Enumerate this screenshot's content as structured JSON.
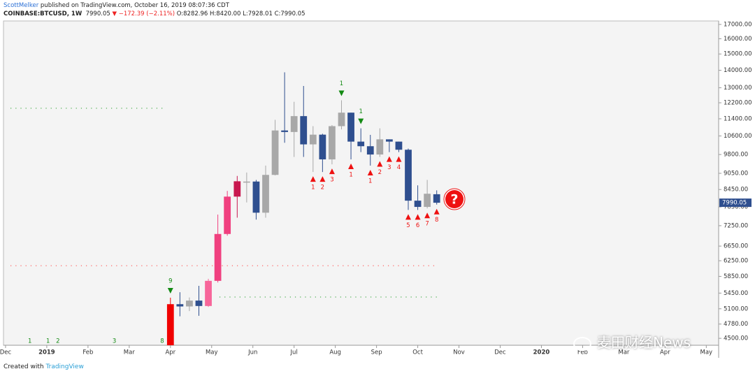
{
  "header": {
    "author": "ScottMelker",
    "published": "published on TradingView.com, October 16, 2019 08:07:36 CDT",
    "symbol": "COINBASE:BTCUSD, 1W",
    "last": "7990.05",
    "change": "▼ −172.39 (−2.11%)",
    "ohlc": [
      "O:8282.96",
      "H:8420.00",
      "L:7928.01",
      "C:7990.05"
    ]
  },
  "chart_data": {
    "type": "candlestick",
    "log_scale": true,
    "x": [
      4,
      4.23,
      4.46,
      4.69,
      4.92,
      5.15,
      5.38,
      5.62,
      5.85,
      6.08,
      6.31,
      6.54,
      6.77,
      7.0,
      7.23,
      7.46,
      7.69,
      7.92,
      8.15,
      8.38,
      8.62,
      8.85,
      9.08,
      9.31,
      9.54,
      9.77,
      10.0,
      10.23,
      10.46
    ],
    "open": [
      4105,
      5200,
      5150,
      5280,
      5160,
      5740,
      7000,
      8200,
      8700,
      8740,
      7660,
      8990,
      10850,
      10780,
      11530,
      10230,
      10660,
      9600,
      11050,
      11700,
      10350,
      10150,
      9800,
      10450,
      10350,
      10000,
      8060,
      7850,
      8283
    ],
    "high": [
      5345,
      5470,
      5350,
      5620,
      5790,
      7600,
      8400,
      8950,
      9080,
      8800,
      9350,
      11350,
      13880,
      12250,
      13100,
      11050,
      10700,
      11100,
      12330,
      11700,
      10950,
      10650,
      10950,
      10450,
      10350,
      10050,
      8600,
      8800,
      8420
    ],
    "low": [
      4080,
      4940,
      5050,
      4950,
      5140,
      5700,
      6950,
      7500,
      8000,
      7440,
      7500,
      8970,
      10300,
      9700,
      9700,
      9100,
      9100,
      9400,
      10900,
      9600,
      9900,
      9350,
      9700,
      9900,
      9900,
      7750,
      7750,
      7800,
      7928
    ],
    "close": [
      5200,
      5150,
      5280,
      5160,
      5740,
      7000,
      8200,
      8750,
      8740,
      7660,
      8990,
      10850,
      10780,
      11530,
      10230,
      10660,
      9600,
      11050,
      11700,
      10350,
      10150,
      9800,
      10450,
      10350,
      10000,
      8060,
      7850,
      8300,
      7990
    ],
    "colors": [
      "#f00000",
      "#2f4f8f",
      "#a8a8a8",
      "#2f4f8f",
      "#f7669a",
      "#f0407f",
      "#f0407f",
      "#c8184f",
      "#a8a8a8",
      "#2f4f8f",
      "#a8a8a8",
      "#a8a8a8",
      "#2f4f8f",
      "#a8a8a8",
      "#2f4f8f",
      "#a8a8a8",
      "#2f4f8f",
      "#a8a8a8",
      "#a8a8a8",
      "#2f4f8f",
      "#2f4f8f",
      "#2f4f8f",
      "#a8a8a8",
      "#2f4f8f",
      "#2f4f8f",
      "#2f4f8f",
      "#2f4f8f",
      "#a8a8a8",
      "#2f4f8f"
    ],
    "labels_above": [
      "9",
      null,
      null,
      null,
      null,
      null,
      null,
      null,
      null,
      null,
      null,
      null,
      null,
      null,
      null,
      null,
      null,
      null,
      "1",
      null,
      "1",
      null,
      null,
      null,
      null,
      null,
      null,
      null,
      null
    ],
    "labels_below": [
      null,
      null,
      null,
      null,
      null,
      null,
      null,
      null,
      null,
      null,
      null,
      null,
      null,
      null,
      null,
      "1",
      "2",
      "3",
      null,
      "1",
      null,
      "1",
      "2",
      "3",
      "4",
      "5",
      "6",
      "7",
      "8"
    ],
    "above_color": "#138a13",
    "below_color": "#ee1111",
    "bottom_annotations": [
      {
        "x": 0.59,
        "text": "1"
      },
      {
        "x": 1.03,
        "text": "1"
      },
      {
        "x": 1.27,
        "text": "2"
      },
      {
        "x": 2.64,
        "text": "3"
      },
      {
        "x": 3.8,
        "text": "8"
      }
    ],
    "levels": [
      {
        "value": 11920,
        "color": "#4caf50",
        "x": [
          0.12,
          3.81
        ]
      },
      {
        "value": 6120,
        "color": "#ff5555",
        "x": [
          0.12,
          10.48
        ]
      },
      {
        "value": 5360,
        "color": "#4caf50",
        "x": [
          5.19,
          10.48
        ]
      }
    ],
    "price_label": {
      "value": 7990.05,
      "label": "7990.05"
    },
    "xlim": [
      -0.05,
      17.3
    ],
    "xticks": [
      {
        "value": 0,
        "label": "Dec"
      },
      {
        "value": 1,
        "label": "2019"
      },
      {
        "value": 2,
        "label": "Feb"
      },
      {
        "value": 3,
        "label": "Mar"
      },
      {
        "value": 4,
        "label": "Apr"
      },
      {
        "value": 5,
        "label": "May"
      },
      {
        "value": 6,
        "label": "Jun"
      },
      {
        "value": 7,
        "label": "Jul"
      },
      {
        "value": 8,
        "label": "Aug"
      },
      {
        "value": 9,
        "label": "Sep"
      },
      {
        "value": 10,
        "label": "Oct"
      },
      {
        "value": 11,
        "label": "Nov"
      },
      {
        "value": 12,
        "label": "Dec"
      },
      {
        "value": 13,
        "label": "2020"
      },
      {
        "value": 14,
        "label": "Feb"
      },
      {
        "value": 15,
        "label": "Mar"
      },
      {
        "value": 16,
        "label": "Apr"
      },
      {
        "value": 17,
        "label": "May"
      }
    ],
    "ylim": [
      4370,
      17250
    ],
    "yticks": [
      {
        "value": 17000,
        "label": "17000.00"
      },
      {
        "value": 16000,
        "label": "16000.00"
      },
      {
        "value": 15000,
        "label": "15000.00"
      },
      {
        "value": 14000,
        "label": "14000.00"
      },
      {
        "value": 13000,
        "label": "13000.00"
      },
      {
        "value": 12200,
        "label": "12200.00"
      },
      {
        "value": 11400,
        "label": "11400.00"
      },
      {
        "value": 10600,
        "label": "10600.00"
      },
      {
        "value": 9800,
        "label": "9800.00"
      },
      {
        "value": 9050,
        "label": "9050.00"
      },
      {
        "value": 8450,
        "label": "8450.00"
      },
      {
        "value": 7850,
        "label": "7850.00"
      },
      {
        "value": 7250,
        "label": "7250.00"
      },
      {
        "value": 6650,
        "label": "6650.00"
      },
      {
        "value": 6250,
        "label": "6250.00"
      },
      {
        "value": 5850,
        "label": "5850.00"
      },
      {
        "value": 5450,
        "label": "5450.00"
      },
      {
        "value": 5100,
        "label": "5100.00"
      },
      {
        "value": 4780,
        "label": "4780.00"
      },
      {
        "value": 4500,
        "label": "4500.00"
      }
    ]
  },
  "footer": {
    "text": "Created with",
    "brand": "TradingView"
  },
  "watermark": "麦田财经News"
}
